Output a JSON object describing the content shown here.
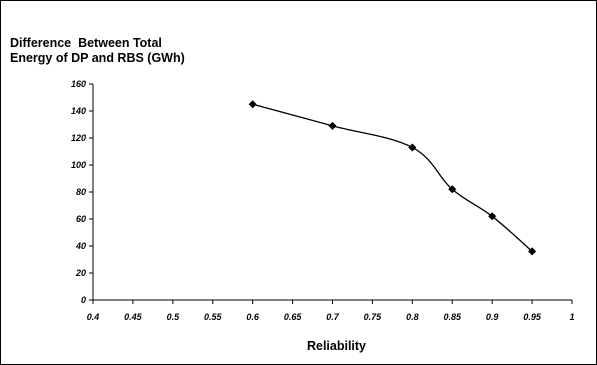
{
  "chart_data": {
    "type": "line",
    "title_lines": [
      "Difference  Between Total",
      "Energy of DP and RBS (GWh)"
    ],
    "xlabel": "Reliability",
    "ylabel": "",
    "xlim": [
      0.4,
      1
    ],
    "ylim": [
      0,
      160
    ],
    "x_ticks": [
      "0.4",
      "0.45",
      "0.5",
      "0.55",
      "0.6",
      "0.65",
      "0.7",
      "0.75",
      "0.8",
      "0.85",
      "0.9",
      "0.95",
      "1"
    ],
    "y_ticks": [
      "0",
      "20",
      "40",
      "60",
      "80",
      "100",
      "120",
      "140",
      "160"
    ],
    "grid": false,
    "legend": "none",
    "series": [
      {
        "x": [
          0.6,
          0.7,
          0.8,
          0.85,
          0.9,
          0.95
        ],
        "y": [
          145,
          129,
          113,
          82,
          62,
          36
        ],
        "color": "#000000",
        "marker": "diamond"
      }
    ]
  }
}
